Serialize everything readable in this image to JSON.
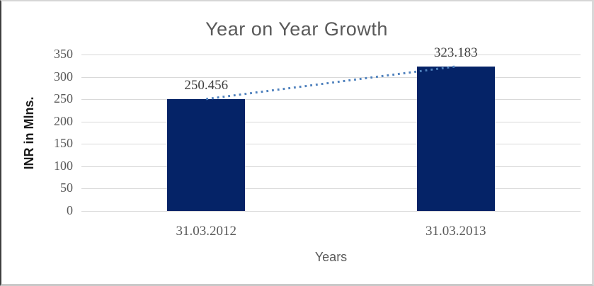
{
  "chart_data": {
    "type": "bar",
    "title": "Year on Year Growth",
    "xlabel": "Years",
    "ylabel": "INR in Mlns.",
    "categories": [
      "31.03.2012",
      "31.03.2013"
    ],
    "values": [
      250.456,
      323.183
    ],
    "data_labels": [
      "250.456",
      "323.183"
    ],
    "ylim": [
      0,
      350
    ],
    "yticks": [
      350,
      300,
      250,
      200,
      150,
      100,
      50,
      0
    ],
    "grid": true,
    "legend_position": "none",
    "trendline": {
      "type": "linear",
      "style": "dotted",
      "color": "#4f81bd"
    },
    "colors": {
      "bar": "#052367",
      "gridline": "#d9d9d9",
      "title": "#595959",
      "tick": "#595959",
      "data_label": "#404040",
      "y_axis_title": "#1a1a1a",
      "x_axis_title": "#595959"
    }
  }
}
